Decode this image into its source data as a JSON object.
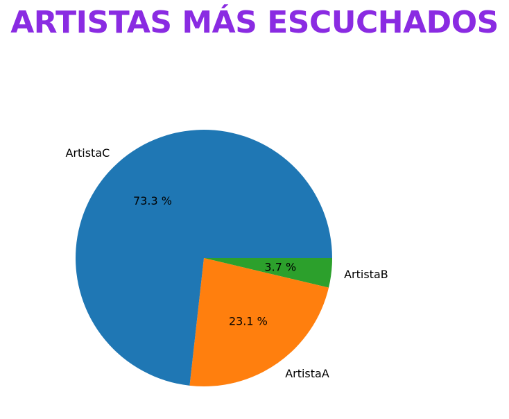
{
  "page": {
    "title": "ARTISTAS MÁS ESCUCHADOS",
    "title_color": "#8a2be2"
  },
  "chart_data": {
    "type": "pie",
    "title": "",
    "slices": [
      {
        "label": "ArtistaB",
        "value": 3.7,
        "pct_label": "3.7 %",
        "color": "#2ca02c"
      },
      {
        "label": "ArtistaA",
        "value": 23.1,
        "pct_label": "23.1 %",
        "color": "#ff7f0e"
      },
      {
        "label": "ArtistaC",
        "value": 73.3,
        "pct_label": "73.3 %",
        "color": "#1f77b4"
      }
    ],
    "start_angle_deg": 0,
    "direction": "clockwise",
    "legend": "none"
  }
}
